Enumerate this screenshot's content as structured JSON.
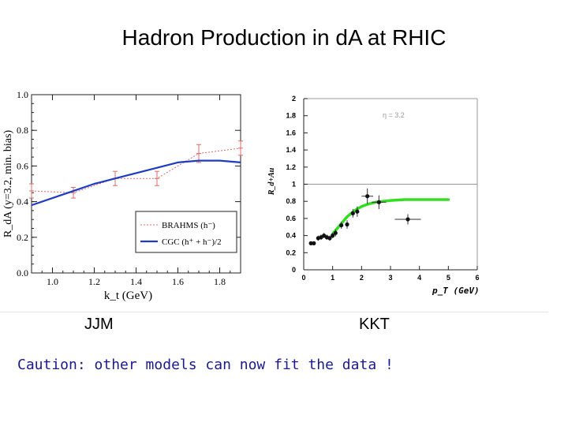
{
  "slide": {
    "title": "Hadron Production in dA at RHIC",
    "caption_left": "JJM",
    "caption_right": "KKT",
    "caution": "Caution: other models can now fit the data !"
  },
  "colors": {
    "brahms": "#e06a6a",
    "cgc": "#1f3cc0",
    "kkt_curve": "#33dd22",
    "caution_text": "#1a1a8c"
  },
  "chart_data": [
    {
      "type": "line",
      "title": "",
      "xlabel": "k_t (GeV)",
      "ylabel": "R_dA (y=3.2, min. bias)",
      "xlim": [
        0.9,
        1.9
      ],
      "ylim": [
        0.0,
        1.0
      ],
      "xticks": [
        "1.0",
        "1.2",
        "1.4",
        "1.6",
        "1.8"
      ],
      "yticks": [
        "0.0",
        "0.2",
        "0.4",
        "0.6",
        "0.8",
        "1.0"
      ],
      "legend_position": "bottom-right",
      "series": [
        {
          "name": "BRAHMS (h⁻)",
          "style": "dotted-with-errorbars",
          "x": [
            0.9,
            1.1,
            1.3,
            1.5,
            1.7,
            1.9
          ],
          "y": [
            0.46,
            0.45,
            0.53,
            0.53,
            0.67,
            0.7
          ],
          "yerr": [
            0.04,
            0.03,
            0.04,
            0.04,
            0.05,
            0.04
          ]
        },
        {
          "name": "CGC (h⁺ + h⁻)/2",
          "style": "solid",
          "x": [
            0.9,
            1.0,
            1.1,
            1.2,
            1.3,
            1.4,
            1.5,
            1.6,
            1.7,
            1.8,
            1.9
          ],
          "y": [
            0.38,
            0.42,
            0.46,
            0.5,
            0.53,
            0.56,
            0.59,
            0.62,
            0.63,
            0.63,
            0.62
          ]
        }
      ]
    },
    {
      "type": "scatter",
      "title": "",
      "xlabel": "p_T  (GeV)",
      "ylabel": "R_d+Au",
      "annotation": "η = 3.2",
      "xlim": [
        0,
        6
      ],
      "ylim": [
        0,
        2
      ],
      "xticks": [
        "0",
        "1",
        "2",
        "3",
        "4",
        "5",
        "6"
      ],
      "yticks": [
        "0",
        "0.2",
        "0.4",
        "0.6",
        "0.8",
        "1",
        "1.2",
        "1.4",
        "1.6",
        "1.8",
        "2"
      ],
      "reference_line_y": 1,
      "series": [
        {
          "name": "",
          "style": "points",
          "x": [
            0.25,
            0.35,
            0.5,
            0.6,
            0.7,
            0.8,
            0.9,
            1.0,
            1.1,
            1.3,
            1.5,
            1.7,
            1.85,
            2.2,
            2.6,
            3.6
          ],
          "y": [
            0.31,
            0.31,
            0.37,
            0.38,
            0.4,
            0.38,
            0.37,
            0.4,
            0.43,
            0.52,
            0.53,
            0.66,
            0.68,
            0.86,
            0.79,
            0.59
          ],
          "xerr": [
            0,
            0,
            0,
            0,
            0,
            0,
            0,
            0,
            0,
            0,
            0,
            0,
            0,
            0.2,
            0.25,
            0.45
          ],
          "yerr": [
            0.02,
            0.02,
            0.03,
            0.03,
            0.03,
            0.03,
            0.03,
            0.03,
            0.04,
            0.04,
            0.05,
            0.05,
            0.06,
            0.09,
            0.08,
            0.06
          ]
        },
        {
          "name": "",
          "style": "solid",
          "x": [
            1.0,
            1.25,
            1.5,
            1.75,
            2.0,
            2.25,
            2.5,
            3.0,
            3.5,
            4.0,
            4.5,
            5.0
          ],
          "y": [
            0.42,
            0.52,
            0.62,
            0.69,
            0.74,
            0.77,
            0.79,
            0.81,
            0.82,
            0.82,
            0.82,
            0.82
          ]
        }
      ]
    }
  ]
}
